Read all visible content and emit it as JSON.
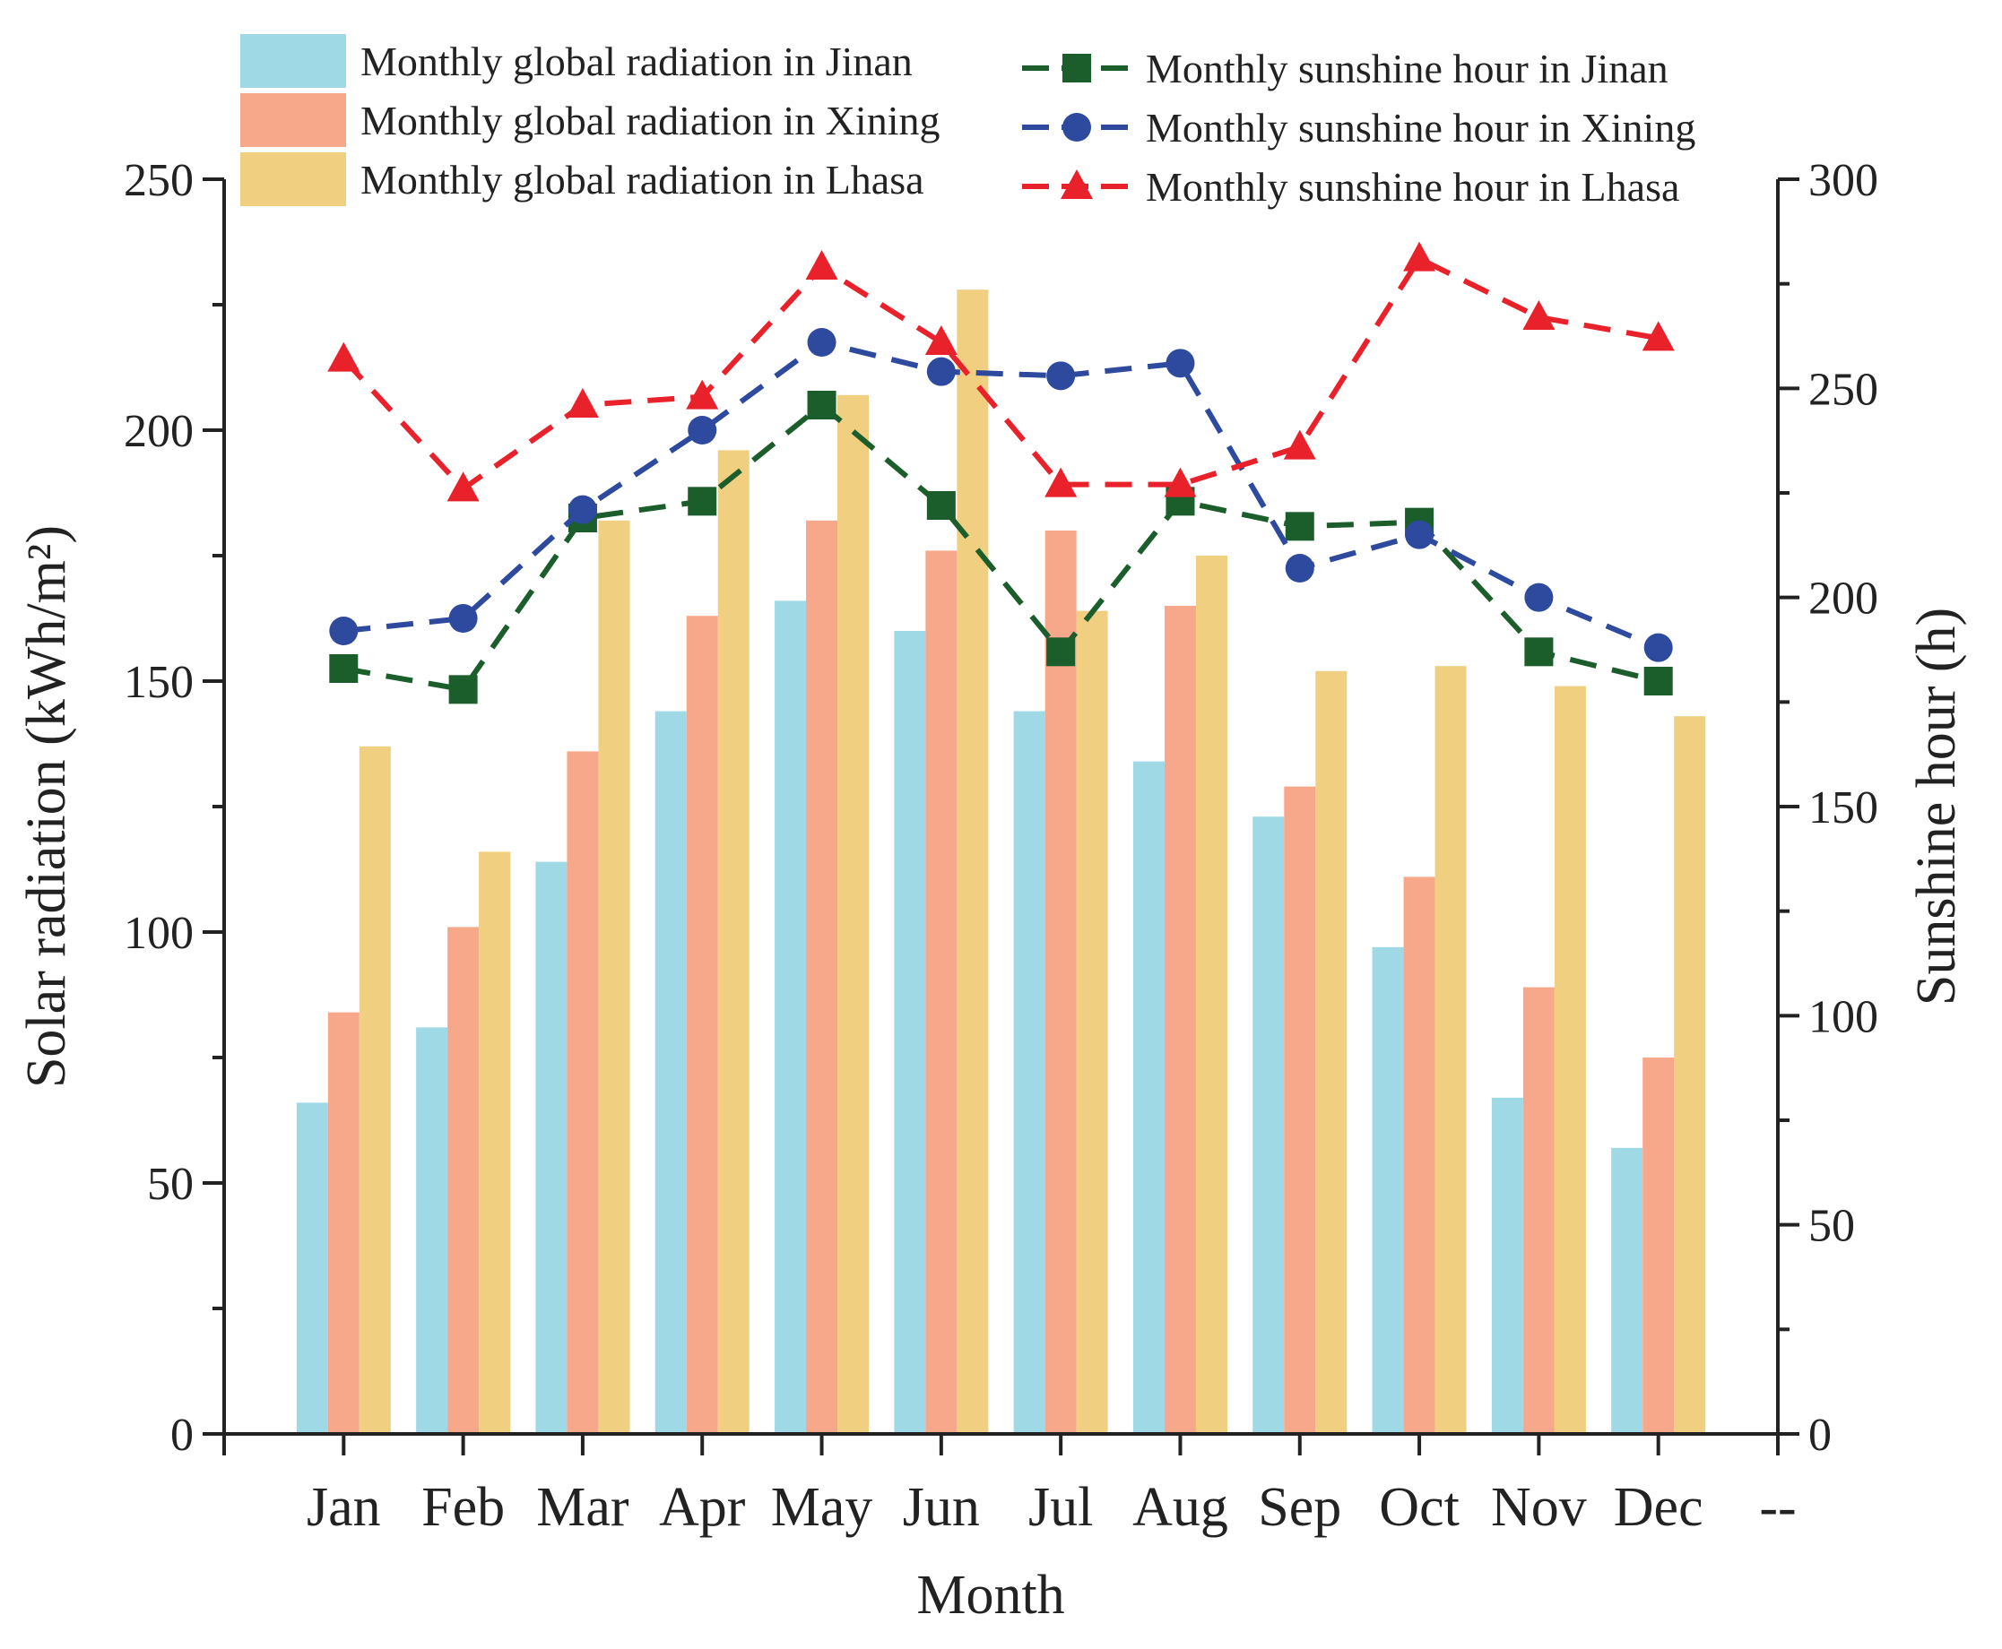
{
  "chart_data": {
    "type": "bar",
    "title": "",
    "xlabel": "Month",
    "ylabel_left": "Solar radiation (kWh/m²)",
    "ylabel_right": "Sunshine hour (h)",
    "ylim_left": [
      0,
      250
    ],
    "ylim_right": [
      0,
      300
    ],
    "left_ticks": [
      0,
      50,
      100,
      150,
      200,
      250
    ],
    "right_ticks": [
      0,
      50,
      100,
      150,
      200,
      250,
      300
    ],
    "categories": [
      "Jan",
      "Feb",
      "Mar",
      "Apr",
      "May",
      "Jun",
      "Jul",
      "Aug",
      "Sep",
      "Oct",
      "Nov",
      "Dec"
    ],
    "extra_tick_label": "--",
    "bar_series": [
      {
        "name": "Monthly global radiation in Jinan",
        "color": "#9fd9e6",
        "values": [
          66,
          81,
          114,
          144,
          166,
          160,
          144,
          134,
          123,
          97,
          67,
          57
        ]
      },
      {
        "name": "Monthly global radiation in Xining",
        "color": "#f8a88a",
        "values": [
          84,
          101,
          136,
          163,
          182,
          176,
          180,
          165,
          129,
          111,
          89,
          75
        ]
      },
      {
        "name": "Monthly global radiation in Lhasa",
        "color": "#f0cf80",
        "values": [
          137,
          116,
          182,
          196,
          207,
          228,
          164,
          175,
          152,
          153,
          149,
          143
        ]
      }
    ],
    "line_series": [
      {
        "name": "Monthly sunshine hour in Jinan",
        "color": "#1b5e2c",
        "marker": "square",
        "values": [
          183,
          178,
          219,
          223,
          246,
          222,
          187,
          223,
          217,
          218,
          187,
          180
        ]
      },
      {
        "name": "Monthly sunshine hour in Xining",
        "color": "#2e4a9e",
        "marker": "circle",
        "values": [
          192,
          195,
          221,
          240,
          261,
          254,
          253,
          256,
          207,
          215,
          200,
          188
        ]
      },
      {
        "name": "Monthly sunshine hour in Lhasa",
        "color": "#e8212a",
        "marker": "triangle",
        "values": [
          257,
          226,
          246,
          248,
          279,
          261,
          227,
          227,
          236,
          281,
          267,
          262
        ]
      }
    ],
    "legend_position": "top"
  }
}
